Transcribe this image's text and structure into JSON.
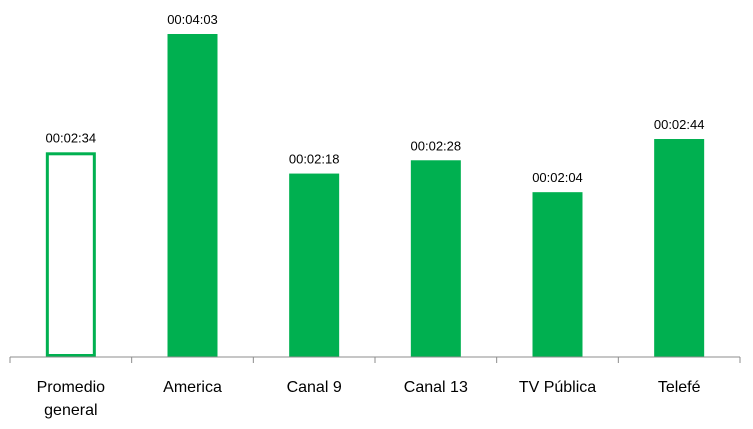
{
  "chart_data": {
    "type": "bar",
    "title": "",
    "xlabel": "",
    "ylabel": "",
    "value_unit": "seconds",
    "ylim": [
      0,
      250
    ],
    "grid": false,
    "legend": "none",
    "categories": [
      [
        "Promedio",
        "general"
      ],
      [
        "America"
      ],
      [
        "Canal 9"
      ],
      [
        "Canal 13"
      ],
      [
        "TV Pública"
      ],
      [
        "Telefé"
      ]
    ],
    "values": [
      154,
      243,
      138,
      148,
      124,
      164
    ],
    "data_labels": [
      "00:02:34",
      "00:04:03",
      "00:02:18",
      "00:02:28",
      "00:02:04",
      "00:02:44"
    ],
    "bar_styles": [
      "outline",
      "filled",
      "filled",
      "filled",
      "filled",
      "filled"
    ],
    "colors": {
      "bar": "#00b050",
      "axis": "#8c8c8c",
      "text": "#000000"
    }
  }
}
